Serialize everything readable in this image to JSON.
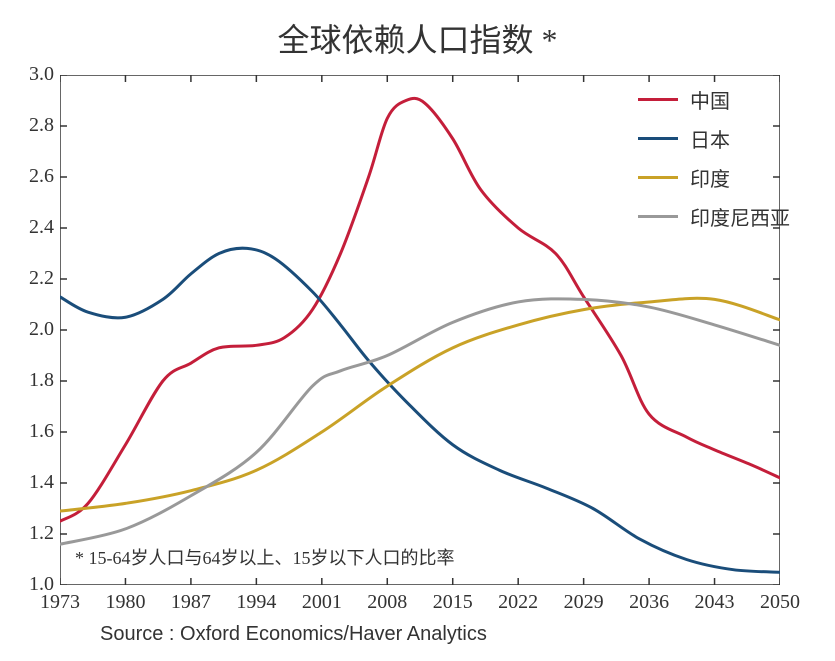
{
  "chart": {
    "type": "line",
    "title": "全球依赖人口指数 *",
    "title_fontsize": 32,
    "footnote": "* 15-64岁人口与64岁以上、15岁以下人口的比率",
    "source": "Source : Oxford Economics/Haver Analytics",
    "xlim": [
      1973,
      2050
    ],
    "ylim": [
      1.0,
      3.0
    ],
    "xtick_step": 7,
    "ytick_step": 0.2,
    "xticks": [
      1973,
      1980,
      1987,
      1994,
      2001,
      2008,
      2015,
      2022,
      2029,
      2036,
      2043,
      2050
    ],
    "yticks": [
      1.0,
      1.2,
      1.4,
      1.6,
      1.8,
      2.0,
      2.2,
      2.4,
      2.6,
      2.8,
      3.0
    ],
    "background_color": "#ffffff",
    "axis_color": "#333333",
    "tick_fontsize": 20,
    "line_width": 3,
    "series": [
      {
        "name": "中国",
        "color": "#c41e3a",
        "data": [
          [
            1973,
            1.25
          ],
          [
            1976,
            1.32
          ],
          [
            1980,
            1.55
          ],
          [
            1984,
            1.8
          ],
          [
            1987,
            1.87
          ],
          [
            1990,
            1.93
          ],
          [
            1994,
            1.94
          ],
          [
            1997,
            1.97
          ],
          [
            2000,
            2.08
          ],
          [
            2003,
            2.3
          ],
          [
            2006,
            2.6
          ],
          [
            2008,
            2.83
          ],
          [
            2010,
            2.9
          ],
          [
            2012,
            2.89
          ],
          [
            2015,
            2.75
          ],
          [
            2018,
            2.55
          ],
          [
            2022,
            2.4
          ],
          [
            2026,
            2.3
          ],
          [
            2029,
            2.13
          ],
          [
            2033,
            1.9
          ],
          [
            2036,
            1.67
          ],
          [
            2040,
            1.58
          ],
          [
            2043,
            1.53
          ],
          [
            2047,
            1.47
          ],
          [
            2050,
            1.42
          ]
        ]
      },
      {
        "name": "日本",
        "color": "#1a4d7a",
        "data": [
          [
            1973,
            2.13
          ],
          [
            1976,
            2.07
          ],
          [
            1980,
            2.05
          ],
          [
            1984,
            2.12
          ],
          [
            1987,
            2.22
          ],
          [
            1990,
            2.3
          ],
          [
            1993,
            2.32
          ],
          [
            1996,
            2.28
          ],
          [
            2000,
            2.15
          ],
          [
            2003,
            2.02
          ],
          [
            2006,
            1.88
          ],
          [
            2010,
            1.72
          ],
          [
            2015,
            1.55
          ],
          [
            2020,
            1.45
          ],
          [
            2025,
            1.38
          ],
          [
            2030,
            1.3
          ],
          [
            2035,
            1.18
          ],
          [
            2040,
            1.1
          ],
          [
            2045,
            1.06
          ],
          [
            2050,
            1.05
          ]
        ]
      },
      {
        "name": "印度",
        "color": "#c9a227",
        "data": [
          [
            1973,
            1.29
          ],
          [
            1980,
            1.32
          ],
          [
            1987,
            1.37
          ],
          [
            1994,
            1.45
          ],
          [
            2001,
            1.6
          ],
          [
            2008,
            1.78
          ],
          [
            2015,
            1.93
          ],
          [
            2022,
            2.02
          ],
          [
            2029,
            2.08
          ],
          [
            2036,
            2.11
          ],
          [
            2043,
            2.12
          ],
          [
            2050,
            2.04
          ]
        ]
      },
      {
        "name": "印度尼西亚",
        "color": "#999999",
        "data": [
          [
            1973,
            1.16
          ],
          [
            1980,
            1.22
          ],
          [
            1987,
            1.35
          ],
          [
            1994,
            1.52
          ],
          [
            2000,
            1.78
          ],
          [
            2003,
            1.84
          ],
          [
            2008,
            1.9
          ],
          [
            2015,
            2.03
          ],
          [
            2022,
            2.11
          ],
          [
            2029,
            2.12
          ],
          [
            2036,
            2.09
          ],
          [
            2043,
            2.02
          ],
          [
            2050,
            1.94
          ]
        ]
      }
    ]
  }
}
